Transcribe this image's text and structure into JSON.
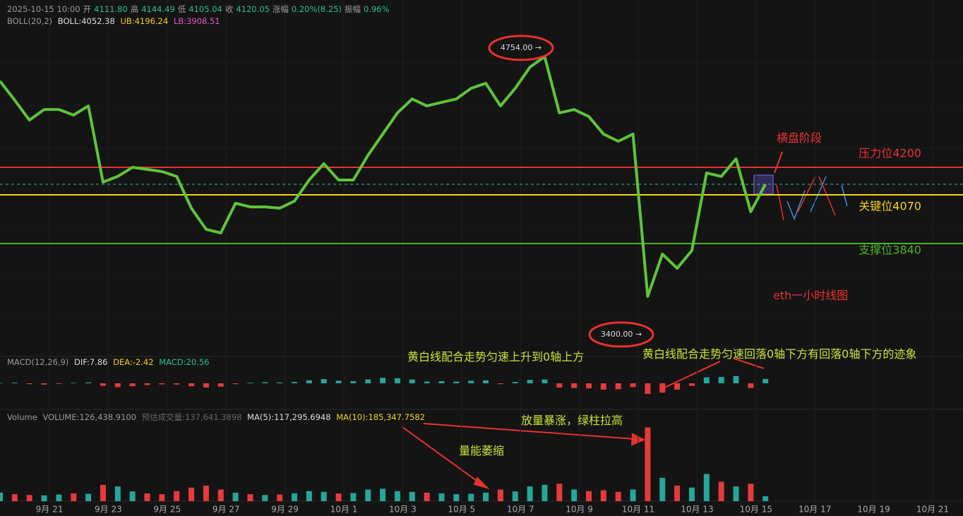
{
  "chart_data": [
    {
      "type": "line",
      "header": {
        "datetime": "2025-10-15 10:00",
        "fields": [
          {
            "label": "开",
            "value": "4111.80"
          },
          {
            "label": "高",
            "value": "4144.49"
          },
          {
            "label": "低",
            "value": "4105.04"
          },
          {
            "label": "收",
            "value": "4120.05"
          },
          {
            "label": "涨幅",
            "value": "0.20%(8.25)"
          },
          {
            "label": "振幅",
            "value": "0.96%"
          }
        ]
      },
      "indicator": {
        "name": "BOLL(20,2)",
        "mid": "BOLL:4052.38",
        "upper": "UB:4196.24",
        "lower": "LB:3908.51"
      },
      "color": "#5ec43a",
      "values": [
        4607,
        4517,
        4423,
        4473,
        4473,
        4447,
        4490,
        4130,
        4157,
        4200,
        4190,
        4180,
        4157,
        4007,
        3907,
        3890,
        4030,
        4013,
        4013,
        4007,
        4040,
        4140,
        4217,
        4140,
        4140,
        4257,
        4357,
        4457,
        4523,
        4490,
        4507,
        4523,
        4573,
        4597,
        4490,
        4573,
        4673,
        4723,
        4457,
        4473,
        4440,
        4357,
        4323,
        4357,
        3590,
        3790,
        3723,
        3807,
        4173,
        4157,
        4240,
        3990,
        4120.05
      ],
      "ylim": [
        3323,
        4857
      ],
      "levels": [
        {
          "value": 4200,
          "label": "压力位4200",
          "color": "#e8322e"
        },
        {
          "value": 4070,
          "label": "关键位4070",
          "color": "#f2d31b"
        },
        {
          "value": 3840,
          "label": "支撑位3840",
          "color": "#4caf2a"
        }
      ],
      "peaks": [
        {
          "value": 4754,
          "label": "4754.00 →"
        },
        {
          "value": 3400,
          "label": "3400.00 →"
        }
      ],
      "annotations": {
        "range": "横盘阶段",
        "caption": "eth一小时线图"
      },
      "date_labels": [
        "9月 21",
        "9月 23",
        "9月 25",
        "9月 27",
        "9月 29",
        "10月 1",
        "10月 3",
        "10月 5",
        "10月 7",
        "10月 9",
        "10月 11",
        "10月 13",
        "10月 15",
        "10月 17",
        "10月 19",
        "10月 21"
      ]
    },
    {
      "type": "bar",
      "indicator": {
        "name": "MACD(12,26,9)",
        "dif": "DIF:7.86",
        "dea": "DEA:-2.42",
        "macd": "MACD:20.56"
      },
      "annotations": [
        "黄白线配合走势匀速上升到0轴上方",
        "黄白线配合走势匀速回落0轴下方有回落0轴下方的迹象"
      ],
      "values": [
        2,
        3,
        -4,
        -6,
        -3,
        2,
        4,
        -12,
        -18,
        -14,
        -8,
        -5,
        -6,
        -14,
        -20,
        -16,
        -4,
        3,
        5,
        4,
        6,
        14,
        20,
        12,
        10,
        18,
        26,
        24,
        18,
        8,
        10,
        8,
        12,
        14,
        -4,
        6,
        16,
        18,
        -20,
        -22,
        -24,
        -30,
        -28,
        -18,
        -50,
        -44,
        -30,
        -12,
        28,
        30,
        34,
        -22,
        20.56
      ],
      "ylim": [
        -100,
        100
      ]
    },
    {
      "type": "bar",
      "indicator": {
        "name": "Volume",
        "volume": "VOLUME:126,438.9100",
        "estimate": "预估成交量:137,641.3898",
        "ma5": "MA(5):117,295.6948",
        "ma10": "MA(10):185,347.7582"
      },
      "annotations": [
        "放量暴涨，绿柱拉高",
        "量能萎缩"
      ],
      "values": [
        220000,
        180000,
        160000,
        150000,
        170000,
        200000,
        190000,
        420000,
        380000,
        250000,
        200000,
        180000,
        260000,
        350000,
        400000,
        300000,
        220000,
        180000,
        160000,
        170000,
        200000,
        260000,
        240000,
        200000,
        210000,
        300000,
        320000,
        260000,
        240000,
        220000,
        200000,
        180000,
        190000,
        220000,
        300000,
        250000,
        380000,
        420000,
        450000,
        300000,
        260000,
        280000,
        240000,
        300000,
        1900000,
        600000,
        400000,
        350000,
        700000,
        500000,
        380000,
        450000,
        126438.91
      ],
      "ylim": [
        0,
        2000000
      ]
    }
  ]
}
